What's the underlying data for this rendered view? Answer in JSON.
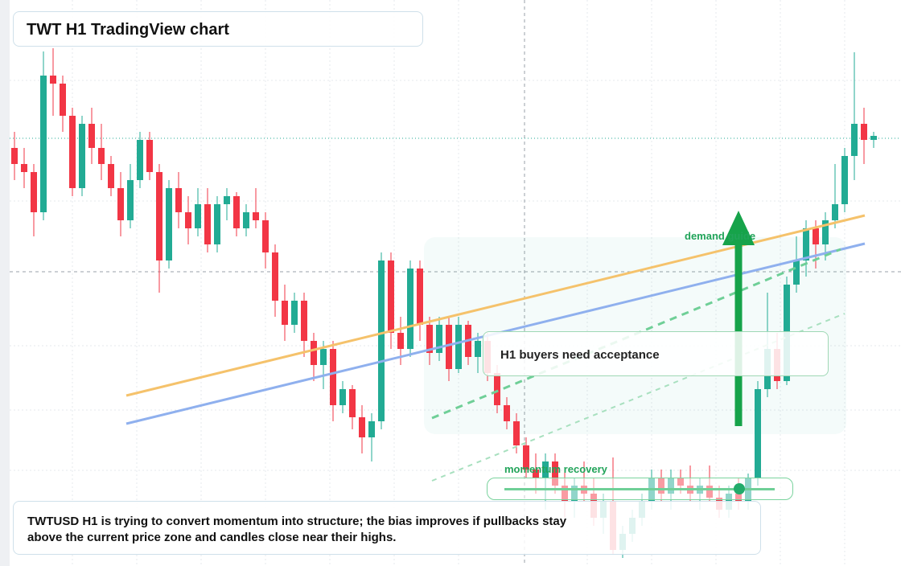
{
  "chart_data": {
    "type": "candlestick",
    "title": "TWT H1 TradingView chart",
    "ylim": [
      0,
      704
    ],
    "up_color": "#22ab94",
    "down_color": "#f23645",
    "ohlc": [
      [
        520,
        540,
        480,
        500
      ],
      [
        500,
        520,
        470,
        490
      ],
      [
        490,
        500,
        410,
        440
      ],
      [
        440,
        640,
        430,
        610
      ],
      [
        610,
        644,
        560,
        600
      ],
      [
        600,
        610,
        540,
        560
      ],
      [
        560,
        570,
        460,
        470
      ],
      [
        470,
        560,
        460,
        550
      ],
      [
        550,
        570,
        500,
        520
      ],
      [
        520,
        550,
        480,
        500
      ],
      [
        500,
        510,
        460,
        470
      ],
      [
        470,
        490,
        410,
        430
      ],
      [
        430,
        500,
        420,
        480
      ],
      [
        480,
        540,
        470,
        530
      ],
      [
        530,
        540,
        480,
        490
      ],
      [
        490,
        500,
        340,
        380
      ],
      [
        380,
        480,
        370,
        470
      ],
      [
        470,
        490,
        420,
        440
      ],
      [
        440,
        460,
        400,
        420
      ],
      [
        420,
        470,
        410,
        450
      ],
      [
        450,
        470,
        390,
        400
      ],
      [
        400,
        460,
        390,
        450
      ],
      [
        450,
        470,
        430,
        460
      ],
      [
        460,
        465,
        410,
        420
      ],
      [
        420,
        450,
        410,
        440
      ],
      [
        440,
        470,
        420,
        430
      ],
      [
        430,
        440,
        370,
        390
      ],
      [
        390,
        400,
        310,
        330
      ],
      [
        330,
        350,
        280,
        300
      ],
      [
        300,
        340,
        290,
        330
      ],
      [
        330,
        340,
        260,
        280
      ],
      [
        280,
        290,
        230,
        250
      ],
      [
        250,
        280,
        220,
        270
      ],
      [
        270,
        280,
        180,
        200
      ],
      [
        200,
        230,
        190,
        220
      ],
      [
        220,
        225,
        170,
        185
      ],
      [
        185,
        200,
        140,
        160
      ],
      [
        160,
        190,
        130,
        180
      ],
      [
        180,
        390,
        170,
        380
      ],
      [
        380,
        390,
        270,
        290
      ],
      [
        290,
        310,
        250,
        270
      ],
      [
        270,
        380,
        260,
        370
      ],
      [
        370,
        380,
        280,
        300
      ],
      [
        300,
        310,
        250,
        265
      ],
      [
        265,
        310,
        255,
        300
      ],
      [
        300,
        310,
        230,
        245
      ],
      [
        245,
        310,
        240,
        300
      ],
      [
        300,
        305,
        250,
        260
      ],
      [
        260,
        290,
        240,
        280
      ],
      [
        280,
        290,
        230,
        240
      ],
      [
        240,
        250,
        190,
        200
      ],
      [
        200,
        210,
        170,
        180
      ],
      [
        180,
        190,
        140,
        150
      ],
      [
        150,
        160,
        110,
        120
      ],
      [
        120,
        140,
        90,
        110
      ],
      [
        110,
        140,
        70,
        130
      ],
      [
        130,
        140,
        90,
        100
      ],
      [
        100,
        120,
        60,
        80
      ],
      [
        80,
        110,
        60,
        100
      ],
      [
        100,
        130,
        80,
        90
      ],
      [
        90,
        110,
        50,
        60
      ],
      [
        60,
        90,
        40,
        80
      ],
      [
        80,
        135,
        14,
        20
      ],
      [
        20,
        50,
        10,
        40
      ],
      [
        40,
        70,
        30,
        60
      ],
      [
        60,
        90,
        50,
        80
      ],
      [
        80,
        120,
        70,
        110
      ],
      [
        110,
        120,
        80,
        90
      ],
      [
        90,
        120,
        70,
        110
      ],
      [
        110,
        120,
        90,
        100
      ],
      [
        100,
        125,
        80,
        90
      ],
      [
        90,
        110,
        70,
        100
      ],
      [
        100,
        125,
        80,
        85
      ],
      [
        85,
        100,
        60,
        70
      ],
      [
        70,
        100,
        60,
        90
      ],
      [
        90,
        110,
        70,
        80
      ],
      [
        80,
        115,
        70,
        110
      ],
      [
        110,
        230,
        100,
        220
      ],
      [
        220,
        340,
        210,
        270
      ],
      [
        270,
        290,
        220,
        230
      ],
      [
        230,
        360,
        225,
        350
      ],
      [
        350,
        410,
        340,
        380
      ],
      [
        380,
        430,
        360,
        420
      ],
      [
        420,
        430,
        370,
        400
      ],
      [
        400,
        440,
        380,
        430
      ],
      [
        430,
        500,
        420,
        450
      ],
      [
        450,
        520,
        440,
        510
      ],
      [
        510,
        639,
        480,
        550
      ],
      [
        550,
        570,
        500,
        530
      ],
      [
        530,
        540,
        520,
        535
      ]
    ]
  },
  "annotations": {
    "demand": "demand guide",
    "acceptance": "H1 buyers need acceptance",
    "momentum": "momentum recovery"
  },
  "note": "TWTUSD H1 is trying to convert momentum into structure; the bias improves if pullbacks stay above the current price zone and candles close near their highs."
}
